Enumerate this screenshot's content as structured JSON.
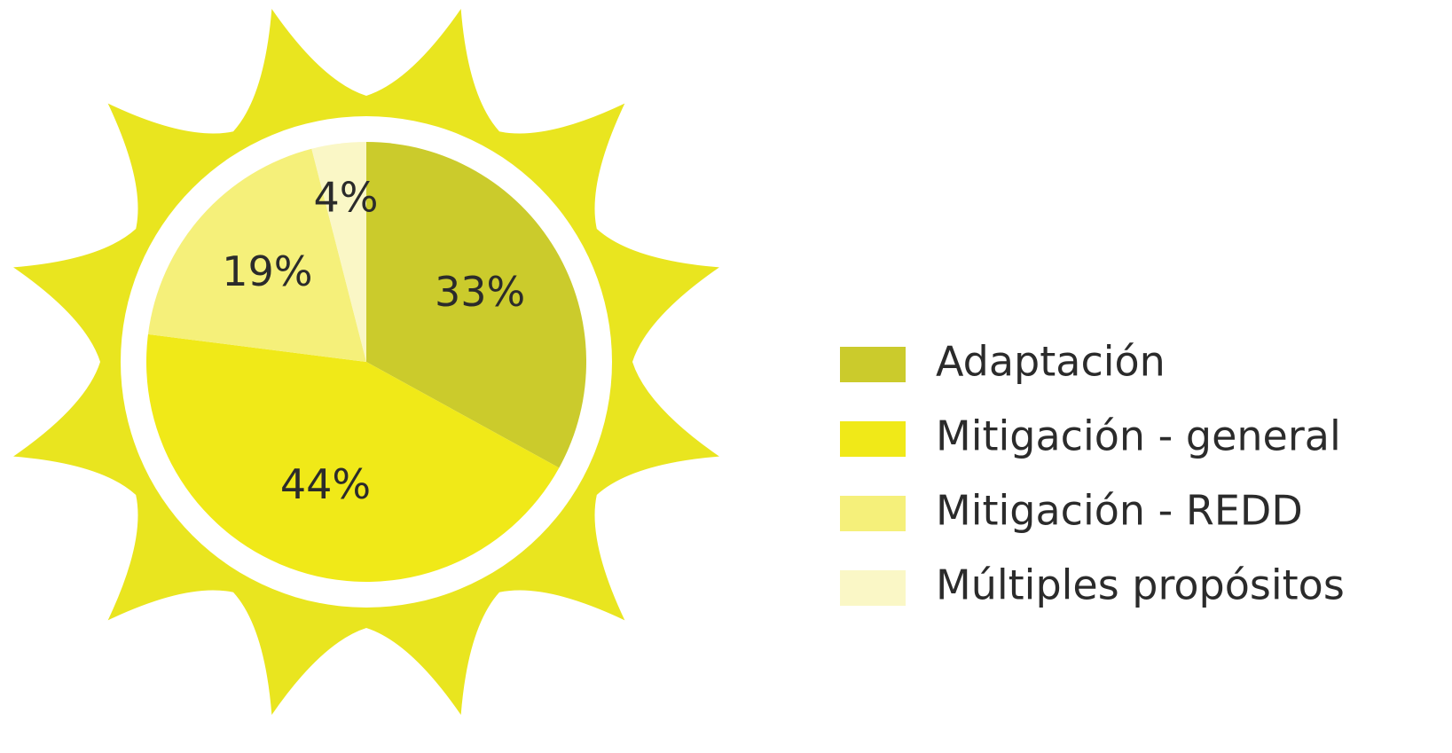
{
  "chart_data": {
    "type": "pie",
    "categories": [
      "Adaptación",
      "Mitigación - general",
      "Mitigación - REDD",
      "Múltiples propósitos"
    ],
    "values": [
      33,
      44,
      19,
      4
    ],
    "value_labels": [
      "33%",
      "44%",
      "19%",
      "4%"
    ],
    "colors": [
      "#cbcb2c",
      "#f0e918",
      "#f5f07a",
      "#faf7c6"
    ],
    "legend": "right"
  }
}
